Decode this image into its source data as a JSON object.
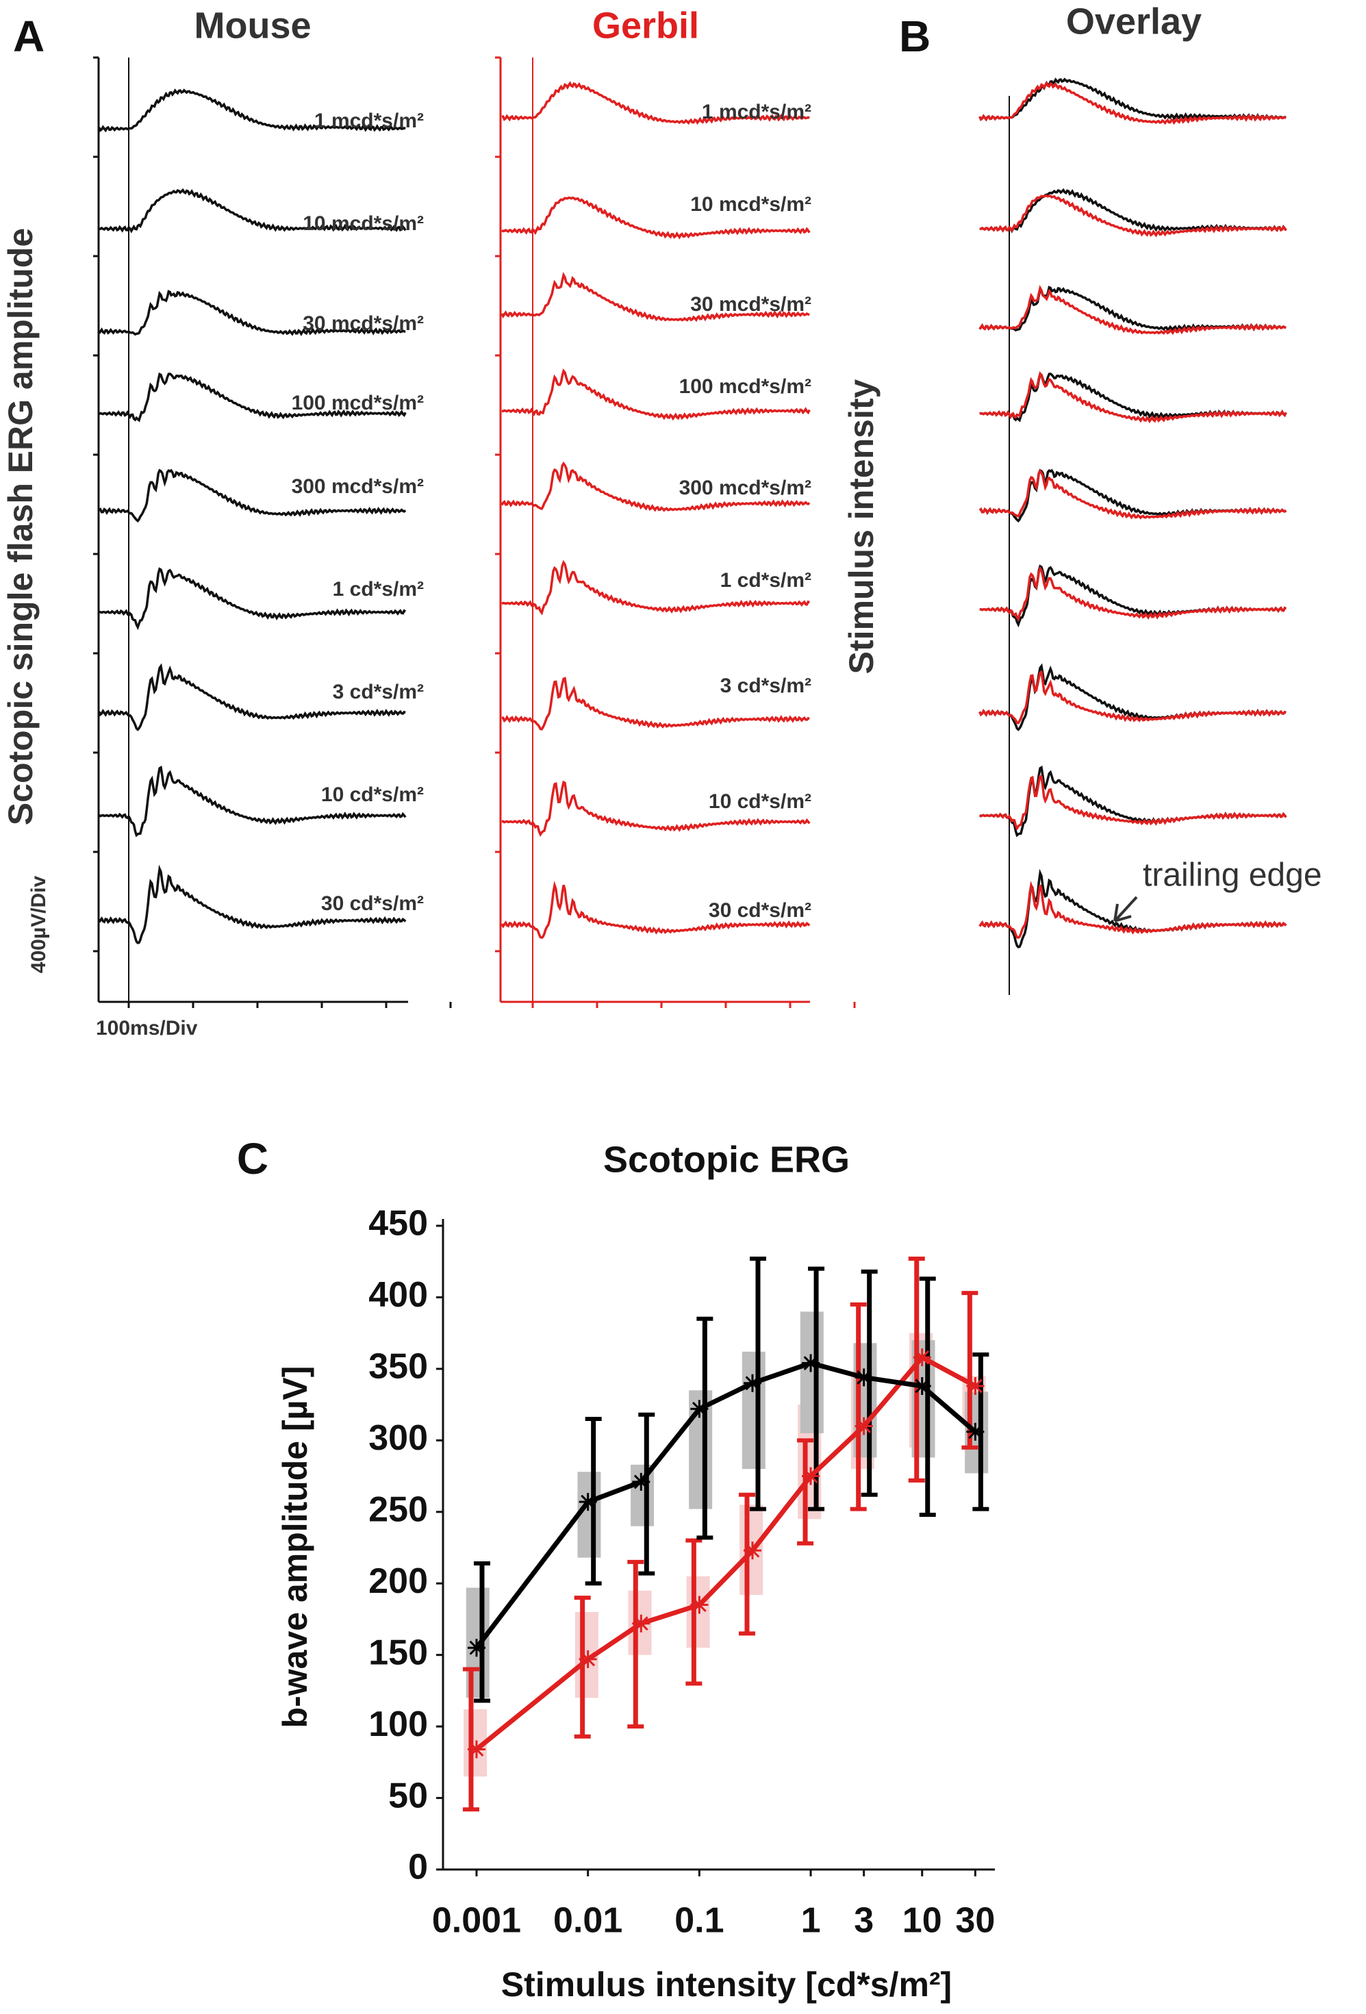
{
  "panel_a": {
    "label": "A",
    "mouse_title": "Mouse",
    "gerbil_title": "Gerbil",
    "y_label": "Scotopic single flash ERG amplitude",
    "y_scale": "400µV/Div",
    "x_scale": "100ms/Div",
    "intensities": [
      "1 mcd*s/m²",
      "10 mcd*s/m²",
      "30 mcd*s/m²",
      "100 mcd*s/m²",
      "300 mcd*s/m²",
      "1 cd*s/m²",
      "3 cd*s/m²",
      "10 cd*s/m²",
      "30 cd*s/m²"
    ]
  },
  "panel_b": {
    "label": "B",
    "title": "Overlay",
    "y_label": "Stimulus intensity",
    "annotation": "trailing edge"
  },
  "chart_data": {
    "type": "line",
    "panel_label": "C",
    "title": "Scotopic ERG",
    "x_label": "Stimulus intensity [cd*s/m²]",
    "y_label": "b-wave amplitude [µV]",
    "x": [
      0.001,
      0.01,
      0.03,
      0.1,
      0.3,
      1,
      3,
      10,
      30
    ],
    "x_log": true,
    "xlim": [
      0.0005,
      45
    ],
    "xticks": [
      0.001,
      0.01,
      0.1,
      1,
      3,
      10,
      30
    ],
    "ylim": [
      0,
      450
    ],
    "yticks": [
      0,
      50,
      100,
      150,
      200,
      250,
      300,
      350,
      400,
      450
    ],
    "series": [
      {
        "color": "#000000",
        "box_color": "#bdbdbd",
        "values": [
          155,
          257,
          271,
          322,
          340,
          354,
          344,
          338,
          306
        ],
        "q1": [
          120,
          218,
          240,
          252,
          280,
          305,
          288,
          288,
          277
        ],
        "q3": [
          197,
          278,
          283,
          335,
          362,
          390,
          368,
          370,
          334
        ],
        "low": [
          118,
          200,
          207,
          232,
          252,
          252,
          262,
          248,
          252
        ],
        "high": [
          214,
          315,
          318,
          385,
          427,
          420,
          418,
          413,
          360
        ]
      },
      {
        "color": "#e02020",
        "box_color": "#f6d2d2",
        "values": [
          84,
          147,
          172,
          185,
          223,
          275,
          310,
          358,
          338
        ],
        "q1": [
          65,
          120,
          150,
          155,
          192,
          245,
          280,
          295,
          310
        ],
        "q3": [
          112,
          180,
          195,
          205,
          255,
          325,
          345,
          375,
          345
        ],
        "low": [
          42,
          93,
          100,
          130,
          165,
          228,
          252,
          272,
          295
        ],
        "high": [
          140,
          190,
          215,
          230,
          262,
          300,
          395,
          427,
          403
        ]
      }
    ]
  }
}
